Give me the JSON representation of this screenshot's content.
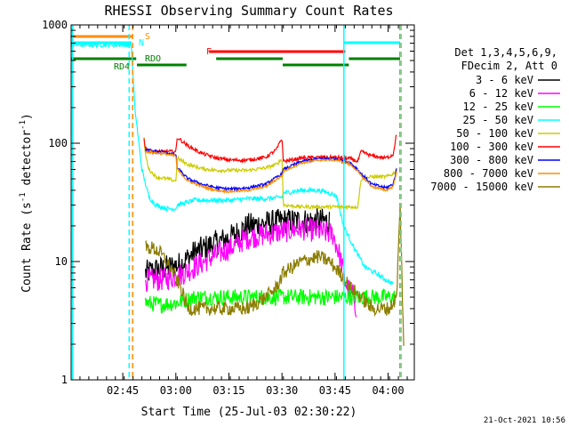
{
  "chart_data": {
    "type": "line",
    "title": "RHESSI Observing Summary Count Rates",
    "xlabel": "Start Time (25-Jul-03 02:30:22)",
    "ylabel_prefix": "Count Rate (s",
    "ylabel_mid": " detector",
    "ylabel_suffix": ")",
    "ylabel_exp": "-1",
    "yscale": "log",
    "ylim": [
      1,
      1000
    ],
    "xlim_minutes": [
      0,
      97
    ],
    "x_ticks": [
      {
        "label": "02:45",
        "minute": 14.6
      },
      {
        "label": "03:00",
        "minute": 29.6
      },
      {
        "label": "03:15",
        "minute": 44.6
      },
      {
        "label": "03:30",
        "minute": 59.6
      },
      {
        "label": "03:45",
        "minute": 74.6
      },
      {
        "label": "04:00",
        "minute": 89.6
      }
    ],
    "y_ticks": [
      {
        "label": "1",
        "value": 1
      },
      {
        "label": "10",
        "value": 10
      },
      {
        "label": "100",
        "value": 100
      },
      {
        "label": "1000",
        "value": 1000
      }
    ],
    "legend_header": [
      "Det 1,3,4,5,6,9,",
      "FDecim 2, Att 0"
    ],
    "legend_position": "right",
    "series": [
      {
        "name": "3 - 6 keV",
        "color": "#000000",
        "points": [
          [
            21,
            8
          ],
          [
            24,
            8.5
          ],
          [
            28,
            9
          ],
          [
            31,
            9.5
          ],
          [
            35,
            12
          ],
          [
            40,
            14
          ],
          [
            45,
            16
          ],
          [
            50,
            20
          ],
          [
            55,
            21
          ],
          [
            60,
            22
          ],
          [
            65,
            22
          ],
          [
            70,
            22
          ],
          [
            73,
            22
          ]
        ]
      },
      {
        "name": "6 - 12 keV",
        "color": "#ff00ff",
        "points": [
          [
            21,
            7
          ],
          [
            25,
            7
          ],
          [
            30,
            7.5
          ],
          [
            35,
            9
          ],
          [
            40,
            11
          ],
          [
            45,
            13
          ],
          [
            50,
            16
          ],
          [
            55,
            17
          ],
          [
            60,
            18
          ],
          [
            65,
            19
          ],
          [
            70,
            18
          ],
          [
            74,
            17
          ],
          [
            76,
            11
          ],
          [
            78,
            6
          ],
          [
            80,
            5
          ],
          [
            80.6,
            4
          ]
        ]
      },
      {
        "name": "12 - 25 keV",
        "color": "#00ff00",
        "points": [
          [
            21,
            4.5
          ],
          [
            25,
            4.3
          ],
          [
            30,
            4.5
          ],
          [
            35,
            5
          ],
          [
            40,
            5
          ],
          [
            45,
            5
          ],
          [
            50,
            5
          ],
          [
            55,
            5
          ],
          [
            60,
            5
          ],
          [
            65,
            5
          ],
          [
            70,
            5
          ],
          [
            75,
            5
          ],
          [
            80,
            5
          ],
          [
            85,
            5
          ],
          [
            90,
            5
          ],
          [
            92,
            5
          ]
        ]
      },
      {
        "name": "25 - 50 keV",
        "color": "#00ffff",
        "points": [
          [
            0,
            680
          ],
          [
            17,
            680
          ],
          [
            18,
            200
          ],
          [
            20,
            60
          ],
          [
            22,
            35
          ],
          [
            24,
            30
          ],
          [
            27,
            28
          ],
          [
            29.6,
            28
          ],
          [
            30,
            30
          ],
          [
            35,
            33
          ],
          [
            40,
            33
          ],
          [
            45,
            33
          ],
          [
            50,
            34
          ],
          [
            55,
            34
          ],
          [
            59.6,
            35
          ],
          [
            60,
            38
          ],
          [
            65,
            40
          ],
          [
            70,
            40
          ],
          [
            73,
            38
          ],
          [
            75,
            36
          ],
          [
            77,
            20
          ],
          [
            80,
            13
          ],
          [
            83,
            9
          ],
          [
            86,
            8
          ],
          [
            89,
            7
          ],
          [
            91,
            6.5
          ]
        ]
      },
      {
        "name": "50 - 100 keV",
        "color": "#cccc00",
        "points": [
          [
            20.6,
            110
          ],
          [
            21,
            80
          ],
          [
            22,
            60
          ],
          [
            24,
            52
          ],
          [
            27,
            50
          ],
          [
            29.6,
            48
          ],
          [
            30,
            75
          ],
          [
            33,
            66
          ],
          [
            37,
            61
          ],
          [
            41,
            59
          ],
          [
            45,
            59
          ],
          [
            50,
            59
          ],
          [
            55,
            62
          ],
          [
            58,
            66
          ],
          [
            59.6,
            74
          ],
          [
            60,
            30
          ],
          [
            65,
            29
          ],
          [
            70,
            29
          ],
          [
            75,
            29
          ],
          [
            77,
            29
          ],
          [
            81,
            29
          ],
          [
            82,
            50
          ],
          [
            85,
            52
          ],
          [
            89,
            52
          ],
          [
            91,
            55
          ],
          [
            92,
            60
          ]
        ]
      },
      {
        "name": "100 - 300 keV",
        "color": "#ff0000",
        "points": [
          [
            20.6,
            110
          ],
          [
            21,
            90
          ],
          [
            22,
            85
          ],
          [
            26,
            85
          ],
          [
            29.6,
            85
          ],
          [
            30,
            112
          ],
          [
            33,
            95
          ],
          [
            37,
            82
          ],
          [
            41,
            75
          ],
          [
            45,
            72
          ],
          [
            50,
            72
          ],
          [
            55,
            76
          ],
          [
            58,
            88
          ],
          [
            59.6,
            110
          ],
          [
            60,
            70
          ],
          [
            65,
            75
          ],
          [
            70,
            76
          ],
          [
            75,
            76
          ],
          [
            79,
            74
          ],
          [
            81,
            70
          ],
          [
            82,
            85
          ],
          [
            85,
            78
          ],
          [
            89,
            75
          ],
          [
            91,
            80
          ],
          [
            92,
            120
          ]
        ]
      },
      {
        "name": "300 - 800 keV",
        "color": "#0000ff",
        "points": [
          [
            21,
            88
          ],
          [
            24,
            85
          ],
          [
            26,
            84
          ],
          [
            29.6,
            80
          ],
          [
            30,
            62
          ],
          [
            33,
            50
          ],
          [
            37,
            45
          ],
          [
            41,
            42
          ],
          [
            45,
            41
          ],
          [
            50,
            42
          ],
          [
            55,
            45
          ],
          [
            59.6,
            55
          ],
          [
            60,
            60
          ],
          [
            65,
            70
          ],
          [
            70,
            74
          ],
          [
            75,
            74
          ],
          [
            79,
            68
          ],
          [
            81,
            60
          ],
          [
            82,
            55
          ],
          [
            85,
            45
          ],
          [
            89,
            42
          ],
          [
            91,
            45
          ],
          [
            92,
            60
          ]
        ]
      },
      {
        "name": "800 - 7000 keV",
        "color": "#ff8c00",
        "points": [
          [
            21,
            85
          ],
          [
            24,
            83
          ],
          [
            26,
            82
          ],
          [
            29.6,
            78
          ],
          [
            30,
            60
          ],
          [
            33,
            48
          ],
          [
            37,
            43
          ],
          [
            41,
            40
          ],
          [
            45,
            39
          ],
          [
            50,
            40
          ],
          [
            55,
            43
          ],
          [
            59.6,
            53
          ],
          [
            60,
            58
          ],
          [
            65,
            68
          ],
          [
            70,
            72
          ],
          [
            75,
            72
          ],
          [
            79,
            66
          ],
          [
            81,
            58
          ],
          [
            82,
            53
          ],
          [
            85,
            43
          ],
          [
            89,
            40
          ],
          [
            91,
            43
          ],
          [
            92,
            58
          ]
        ]
      },
      {
        "name": "7000 - 15000 keV",
        "color": "#8b7d00",
        "points": [
          [
            21,
            13
          ],
          [
            23,
            13
          ],
          [
            25,
            12
          ],
          [
            27,
            10
          ],
          [
            29,
            8
          ],
          [
            31,
            6
          ],
          [
            33,
            4
          ],
          [
            35,
            4
          ],
          [
            40,
            4
          ],
          [
            45,
            4
          ],
          [
            50,
            4
          ],
          [
            55,
            5
          ],
          [
            58,
            6
          ],
          [
            60,
            8
          ],
          [
            65,
            10
          ],
          [
            70,
            11
          ],
          [
            73,
            10
          ],
          [
            76,
            8
          ],
          [
            79,
            6
          ],
          [
            82,
            5
          ],
          [
            85,
            4
          ],
          [
            90,
            4
          ],
          [
            92,
            5
          ],
          [
            93,
            30
          ],
          [
            94,
            2
          ]
        ]
      }
    ],
    "attenuator_labels": [
      {
        "text": "S",
        "color": "#ff8c00"
      },
      {
        "text": "N",
        "color": "#00ffff"
      },
      {
        "text": "F",
        "color": "#ff0000"
      },
      {
        "text": "RDO",
        "color": "#008000"
      },
      {
        "text": "RD4",
        "color": "#008000"
      }
    ],
    "flag_bars": [
      {
        "label": "S",
        "color": "#ff8c00",
        "segments": [
          [
            0,
            17.4
          ]
        ]
      },
      {
        "label": "N",
        "color": "#00ffff",
        "segments": [
          [
            0,
            17.1
          ],
          [
            77.1,
            93
          ]
        ]
      },
      {
        "label": "F",
        "color": "#ff0000",
        "segments": [
          [
            39,
            77.5
          ]
        ]
      },
      {
        "label": "RDO",
        "color": "#008000",
        "segments": [
          [
            0,
            18.4
          ],
          [
            41,
            59.8
          ],
          [
            78.5,
            93
          ]
        ]
      },
      {
        "label": "RD4",
        "color": "#008000",
        "segments": [
          [
            18.6,
            32.6
          ],
          [
            59.8,
            78.5
          ]
        ]
      }
    ],
    "vertical_lines": [
      {
        "minute": 17.4,
        "color": "#ff8c00",
        "style": "dashed"
      },
      {
        "minute": 16.4,
        "color": "#00ffff",
        "style": "dashed"
      },
      {
        "minute": 77.1,
        "color": "#00ffff",
        "style": "solid"
      },
      {
        "minute": 92.9,
        "color": "#ff8c00",
        "style": "dashed"
      },
      {
        "minute": 93.3,
        "color": "#00ffff",
        "style": "dashed"
      },
      {
        "minute": 0.4,
        "color": "#00ffff",
        "style": "solid"
      }
    ],
    "footer_date": "21-Oct-2021 10:56"
  }
}
